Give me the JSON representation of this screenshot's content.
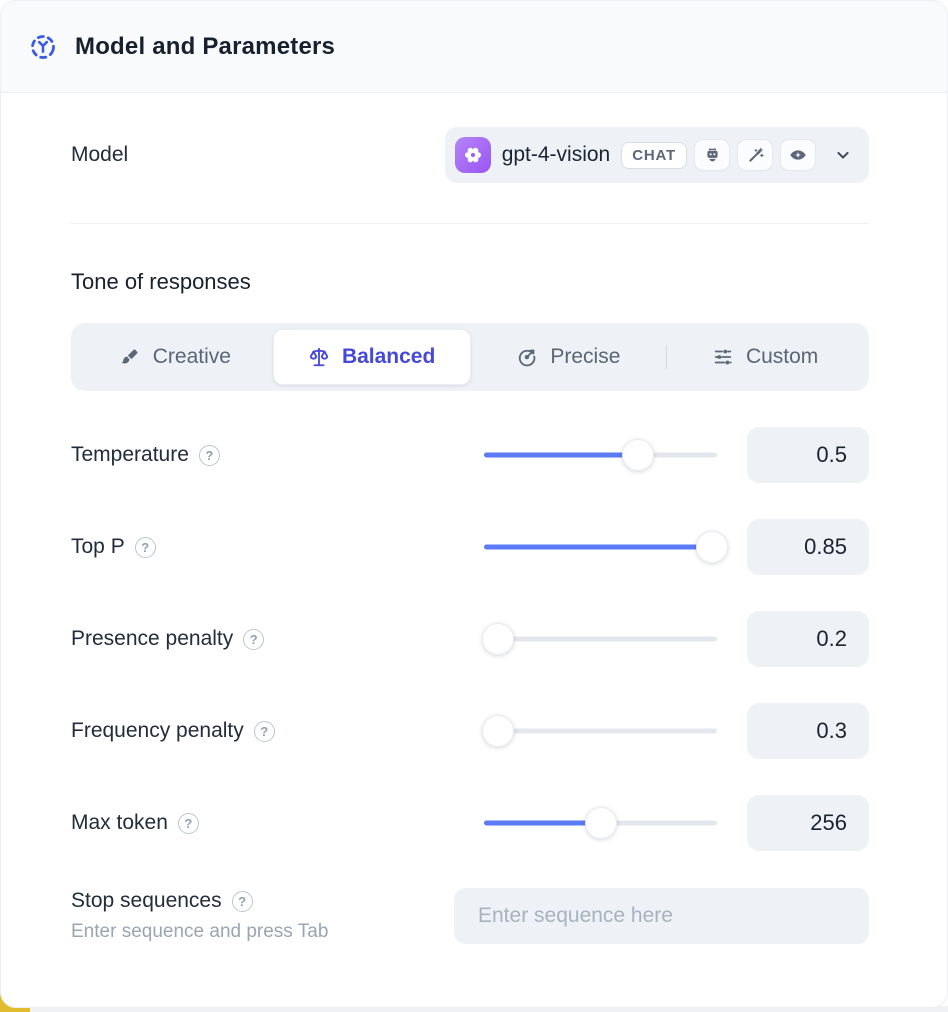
{
  "header": {
    "title": "Model and Parameters"
  },
  "model": {
    "label": "Model",
    "selected_name": "gpt-4-vision",
    "type_badge": "CHAT",
    "capability_icons": [
      "robot-icon",
      "wand-icon",
      "vision-eye-icon"
    ]
  },
  "tone": {
    "heading": "Tone of responses",
    "options": [
      {
        "label": "Creative",
        "icon": "brush-icon",
        "selected": false
      },
      {
        "label": "Balanced",
        "icon": "scale-icon",
        "selected": true
      },
      {
        "label": "Precise",
        "icon": "target-icon",
        "selected": false
      },
      {
        "label": "Custom",
        "icon": "sliders-icon",
        "selected": false
      }
    ]
  },
  "parameters": [
    {
      "label": "Temperature",
      "value": "0.5",
      "fill_pct": 66
    },
    {
      "label": "Top P",
      "value": "0.85",
      "fill_pct": 98
    },
    {
      "label": "Presence penalty",
      "value": "0.2",
      "fill_pct": 6
    },
    {
      "label": "Frequency penalty",
      "value": "0.3",
      "fill_pct": 6
    },
    {
      "label": "Max token",
      "value": "256",
      "fill_pct": 50
    }
  ],
  "stop_sequences": {
    "label": "Stop sequences",
    "hint": "Enter sequence and press Tab",
    "placeholder": "Enter sequence here"
  },
  "help_glyph": "?",
  "colors": {
    "accent_blue": "#5b7af5",
    "selected_indigo": "#4549da",
    "brand_purple": "#a36bf5",
    "header_icon_blue": "#3a5ae8"
  }
}
